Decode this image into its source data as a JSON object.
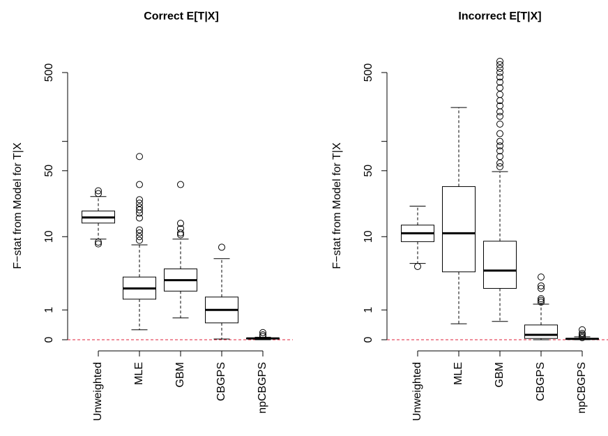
{
  "chart_data": [
    {
      "type": "box",
      "title": "Correct E[T|X]",
      "ylabel": "F−stat from Model for T|X",
      "categories": [
        "Unweighted",
        "MLE",
        "GBM",
        "CBGPS",
        "npCBGPS"
      ],
      "whisker_low": [
        9.4,
        0.26,
        0.66,
        0.016,
        0
      ],
      "q1": [
        14.1,
        1.57,
        2.1,
        0.48,
        0.02
      ],
      "median": [
        16.2,
        2.3,
        3.0,
        1.0,
        0.03
      ],
      "q3": [
        19,
        3.3,
        4.2,
        1.7,
        0.04
      ],
      "whisker_high": [
        27,
        8.1,
        9.4,
        5.6,
        0.06
      ],
      "outliers": [
        [
          31,
          29,
          8.7,
          8.3
        ],
        [
          70,
          36,
          25,
          23,
          21,
          19.5,
          18,
          16,
          11.9,
          11,
          10,
          9.1
        ],
        [
          36,
          14,
          12.3,
          11,
          10.5
        ],
        [
          7.6
        ],
        [
          0.18,
          0.12,
          0.08
        ]
      ],
      "box_color": "#000000",
      "yscale": "log1p",
      "ylim": [
        0,
        500
      ],
      "yticks": [
        0,
        1,
        10,
        50,
        {
          "value": 100,
          "label": null
        },
        500
      ],
      "hline": 0,
      "hline_color": "#e0203a"
    },
    {
      "type": "box",
      "title": "Incorrect E[T|X]",
      "ylabel": "F−stat from Model for T|X",
      "categories": [
        "Unweighted",
        "MLE",
        "GBM",
        "CBGPS",
        "npCBGPS"
      ],
      "whisker_low": [
        4.9,
        0.45,
        0.53,
        0,
        0
      ],
      "q1": [
        8.8,
        3.85,
        2.3,
        0.03,
        0.01
      ],
      "median": [
        10.9,
        10.9,
        4.0,
        0.12,
        0.02
      ],
      "q3": [
        13.4,
        34.3,
        8.9,
        0.41,
        0.03
      ],
      "whisker_high": [
        21.4,
        221,
        49,
        1.29,
        0.07
      ],
      "outliers": [
        [
          4.5
        ],
        [],
        [
          55,
          60,
          70,
          80,
          90,
          100,
          120,
          150,
          180,
          200,
          230,
          260,
          300,
          350,
          400,
          450,
          500,
          550,
          600,
          650
        ],
        [
          3.3,
          2.5,
          2.3,
          1.6,
          1.5,
          1.4
        ],
        [
          0.26,
          0.16,
          0.12,
          0.08,
          0.05
        ]
      ],
      "box_color": "#000000",
      "yscale": "log1p",
      "ylim": [
        0,
        500
      ],
      "yticks": [
        0,
        1,
        10,
        50,
        {
          "value": 100,
          "label": null
        },
        500
      ],
      "hline": 0,
      "hline_color": "#e0203a"
    }
  ]
}
